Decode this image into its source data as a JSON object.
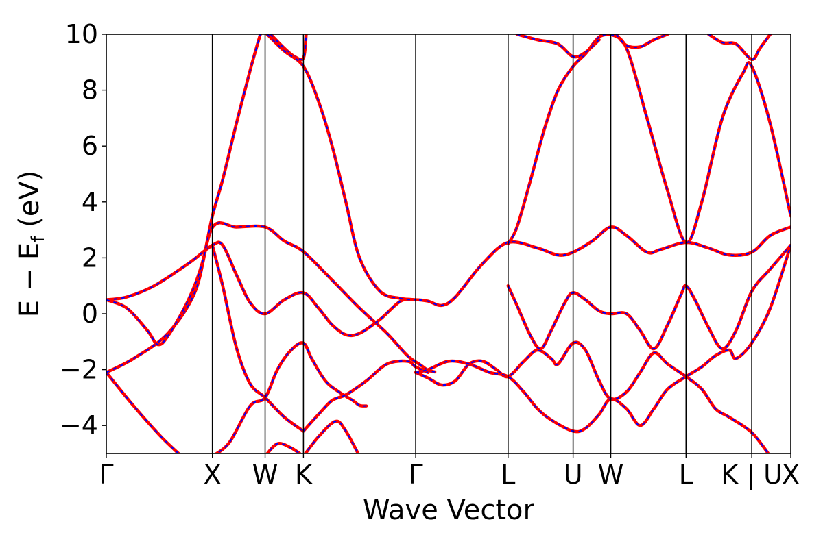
{
  "chart_data": {
    "type": "line",
    "title": "",
    "xlabel": "Wave Vector",
    "ylabel": "E − E",
    "ylabel_sub": "f",
    "ylabel_suffix": " (eV)",
    "xlim": [
      0,
      1
    ],
    "ylim": [
      -5,
      10
    ],
    "yticks": [
      -4,
      -2,
      0,
      2,
      4,
      6,
      8,
      10
    ],
    "ytick_labels": [
      "−4",
      "−2",
      "0",
      "2",
      "4",
      "6",
      "8",
      "10"
    ],
    "kpoints": [
      {
        "label": "Γ",
        "x": 0.0
      },
      {
        "label": "X",
        "x": 0.155
      },
      {
        "label": "W",
        "x": 0.232
      },
      {
        "label": "K",
        "x": 0.288
      },
      {
        "label": "Γ",
        "x": 0.452
      },
      {
        "label": "L",
        "x": 0.587
      },
      {
        "label": "U",
        "x": 0.682
      },
      {
        "label": "W",
        "x": 0.737
      },
      {
        "label": "L",
        "x": 0.847
      },
      {
        "label": "K | U",
        "x": 0.943
      },
      {
        "label": "X",
        "x": 1.0
      }
    ],
    "grid": false,
    "series": [
      {
        "color": "#ff0000",
        "overlay_color": "#0000ff",
        "points": [
          [
            0,
            -2.1
          ],
          [
            0.04,
            -3.3
          ],
          [
            0.08,
            -4.4
          ],
          [
            0.11,
            -5.1
          ]
        ]
      },
      {
        "color": "#ff0000",
        "overlay_color": "#0000ff",
        "points": [
          [
            0,
            -2.1
          ],
          [
            0.04,
            -1.6
          ],
          [
            0.09,
            -0.7
          ],
          [
            0.13,
            0.8
          ],
          [
            0.155,
            3.08
          ],
          [
            0.19,
            3.1
          ],
          [
            0.232,
            3.1
          ],
          [
            0.26,
            2.6
          ],
          [
            0.288,
            2.22
          ],
          [
            0.33,
            1.2
          ],
          [
            0.37,
            0.2
          ],
          [
            0.41,
            -0.7
          ],
          [
            0.44,
            -1.5
          ],
          [
            0.46,
            -1.85
          ],
          [
            0.47,
            -2.02
          ],
          [
            0.48,
            -2.08
          ]
        ]
      },
      {
        "color": "#ff0000",
        "overlay_color": "#0000ff",
        "points": [
          [
            0,
            0.5
          ],
          [
            0.03,
            0.6
          ],
          [
            0.07,
            1.0
          ],
          [
            0.12,
            1.8
          ],
          [
            0.155,
            2.45
          ],
          [
            0.17,
            2.45
          ],
          [
            0.19,
            1.4
          ],
          [
            0.21,
            0.4
          ],
          [
            0.232,
            0.0
          ],
          [
            0.26,
            0.5
          ],
          [
            0.288,
            0.75
          ],
          [
            0.31,
            0.2
          ],
          [
            0.33,
            -0.4
          ],
          [
            0.35,
            -0.75
          ],
          [
            0.37,
            -0.7
          ],
          [
            0.4,
            -0.2
          ],
          [
            0.43,
            0.45
          ],
          [
            0.452,
            0.5
          ],
          [
            0.47,
            0.45
          ],
          [
            0.49,
            0.3
          ],
          [
            0.51,
            0.6
          ],
          [
            0.55,
            1.8
          ],
          [
            0.587,
            2.55
          ],
          [
            0.63,
            2.35
          ],
          [
            0.66,
            2.1
          ],
          [
            0.682,
            2.2
          ],
          [
            0.71,
            2.6
          ],
          [
            0.737,
            3.1
          ],
          [
            0.76,
            2.8
          ],
          [
            0.79,
            2.2
          ],
          [
            0.81,
            2.3
          ],
          [
            0.847,
            2.55
          ],
          [
            0.88,
            2.35
          ],
          [
            0.91,
            2.1
          ],
          [
            0.943,
            2.2
          ],
          [
            0.97,
            2.8
          ],
          [
            1.0,
            3.1
          ]
        ]
      },
      {
        "color": "#ff0000",
        "overlay_color": "#0000ff",
        "points": [
          [
            0,
            0.5
          ],
          [
            0.03,
            0.2
          ],
          [
            0.06,
            -0.6
          ],
          [
            0.075,
            -1.1
          ],
          [
            0.09,
            -0.8
          ],
          [
            0.12,
            0.5
          ],
          [
            0.14,
            1.8
          ],
          [
            0.155,
            3.5
          ],
          [
            0.17,
            4.8
          ],
          [
            0.19,
            6.8
          ],
          [
            0.21,
            8.7
          ],
          [
            0.225,
            10.0
          ]
        ]
      },
      {
        "color": "#ff0000",
        "overlay_color": "#0000ff",
        "points": [
          [
            0.155,
            2.45
          ],
          [
            0.17,
            1.0
          ],
          [
            0.19,
            -1.2
          ],
          [
            0.21,
            -2.5
          ],
          [
            0.232,
            -3.0
          ],
          [
            0.26,
            -3.7
          ],
          [
            0.288,
            -4.2
          ]
        ]
      },
      {
        "color": "#ff0000",
        "overlay_color": "#0000ff",
        "points": [
          [
            0.155,
            -5.1
          ],
          [
            0.18,
            -4.6
          ],
          [
            0.21,
            -3.3
          ],
          [
            0.232,
            -3.0
          ],
          [
            0.25,
            -2.0
          ],
          [
            0.27,
            -1.3
          ],
          [
            0.288,
            -1.05
          ],
          [
            0.3,
            -1.6
          ],
          [
            0.32,
            -2.4
          ],
          [
            0.34,
            -2.8
          ],
          [
            0.36,
            -3.1
          ],
          [
            0.37,
            -3.28
          ],
          [
            0.38,
            -3.3
          ]
        ]
      },
      {
        "color": "#ff0000",
        "overlay_color": "#0000ff",
        "points": [
          [
            0.288,
            -4.2
          ],
          [
            0.31,
            -3.6
          ],
          [
            0.33,
            -3.1
          ],
          [
            0.35,
            -2.9
          ],
          [
            0.38,
            -2.4
          ],
          [
            0.41,
            -1.8
          ],
          [
            0.44,
            -1.7
          ],
          [
            0.452,
            -1.9
          ],
          [
            0.47,
            -2.1
          ]
        ]
      },
      {
        "color": "#ff0000",
        "overlay_color": "#0000ff",
        "points": [
          [
            0.288,
            -5.1
          ],
          [
            0.31,
            -4.4
          ],
          [
            0.335,
            -3.85
          ],
          [
            0.35,
            -4.2
          ],
          [
            0.37,
            -5.1
          ]
        ]
      },
      {
        "color": "#ff0000",
        "overlay_color": "#0000ff",
        "points": [
          [
            0.232,
            -5.1
          ],
          [
            0.25,
            -4.65
          ],
          [
            0.27,
            -4.8
          ],
          [
            0.288,
            -5.1
          ]
        ]
      },
      {
        "color": "#ff0000",
        "overlay_color": "#0000ff",
        "points": [
          [
            0.452,
            -2.1
          ],
          [
            0.47,
            -2.3
          ],
          [
            0.49,
            -2.55
          ],
          [
            0.51,
            -2.4
          ],
          [
            0.53,
            -1.8
          ],
          [
            0.55,
            -1.7
          ],
          [
            0.57,
            -2.0
          ],
          [
            0.587,
            -2.25
          ],
          [
            0.61,
            -1.7
          ],
          [
            0.63,
            -1.3
          ],
          [
            0.65,
            -1.6
          ],
          [
            0.66,
            -1.8
          ],
          [
            0.682,
            -1.05
          ],
          [
            0.7,
            -1.3
          ],
          [
            0.72,
            -2.4
          ],
          [
            0.737,
            -3.05
          ],
          [
            0.76,
            -2.8
          ],
          [
            0.78,
            -2.1
          ],
          [
            0.8,
            -1.4
          ],
          [
            0.82,
            -1.8
          ],
          [
            0.847,
            -2.25
          ],
          [
            0.87,
            -2.7
          ],
          [
            0.89,
            -3.4
          ],
          [
            0.91,
            -3.7
          ],
          [
            0.943,
            -4.25
          ],
          [
            0.97,
            -5.1
          ]
        ]
      },
      {
        "color": "#ff0000",
        "overlay_color": "#0000ff",
        "points": [
          [
            0.452,
            -2.1
          ],
          [
            0.47,
            -2.0
          ],
          [
            0.5,
            -1.7
          ],
          [
            0.53,
            -1.8
          ],
          [
            0.56,
            -2.1
          ],
          [
            0.587,
            -2.25
          ],
          [
            0.61,
            -2.8
          ],
          [
            0.63,
            -3.4
          ],
          [
            0.65,
            -3.8
          ],
          [
            0.682,
            -4.2
          ],
          [
            0.7,
            -4.1
          ],
          [
            0.72,
            -3.6
          ],
          [
            0.737,
            -3.05
          ],
          [
            0.76,
            -3.4
          ],
          [
            0.78,
            -4.0
          ],
          [
            0.8,
            -3.4
          ],
          [
            0.82,
            -2.7
          ],
          [
            0.847,
            -2.25
          ],
          [
            0.87,
            -1.9
          ],
          [
            0.89,
            -1.5
          ],
          [
            0.91,
            -1.3
          ],
          [
            0.92,
            -1.6
          ],
          [
            0.943,
            -1.05
          ],
          [
            0.97,
            0.2
          ],
          [
            1.0,
            2.45
          ]
        ]
      },
      {
        "color": "#ff0000",
        "overlay_color": "#0000ff",
        "points": [
          [
            0.587,
            1.0
          ],
          [
            0.6,
            0.3
          ],
          [
            0.62,
            -0.8
          ],
          [
            0.635,
            -1.25
          ],
          [
            0.65,
            -0.6
          ],
          [
            0.67,
            0.4
          ],
          [
            0.682,
            0.75
          ],
          [
            0.7,
            0.5
          ],
          [
            0.72,
            0.1
          ],
          [
            0.737,
            0.0
          ],
          [
            0.76,
            0.0
          ],
          [
            0.78,
            -0.6
          ],
          [
            0.8,
            -1.25
          ],
          [
            0.82,
            -0.4
          ],
          [
            0.84,
            0.7
          ],
          [
            0.847,
            1.0
          ],
          [
            0.86,
            0.5
          ],
          [
            0.88,
            -0.5
          ],
          [
            0.9,
            -1.25
          ],
          [
            0.92,
            -0.6
          ],
          [
            0.943,
            0.8
          ],
          [
            0.97,
            1.6
          ],
          [
            1.0,
            2.45
          ]
        ]
      },
      {
        "color": "#ff0000",
        "overlay_color": "#0000ff",
        "points": [
          [
            0.587,
            2.5
          ],
          [
            0.6,
            3.1
          ],
          [
            0.62,
            4.8
          ],
          [
            0.64,
            6.6
          ],
          [
            0.66,
            8.0
          ],
          [
            0.682,
            8.85
          ],
          [
            0.7,
            9.3
          ],
          [
            0.72,
            9.9
          ],
          [
            0.737,
            10.0
          ]
        ]
      },
      {
        "color": "#ff0000",
        "overlay_color": "#0000ff",
        "points": [
          [
            0.737,
            10.0
          ],
          [
            0.76,
            9.5
          ],
          [
            0.79,
            7.0
          ],
          [
            0.82,
            4.4
          ],
          [
            0.847,
            2.55
          ],
          [
            0.87,
            4.0
          ],
          [
            0.9,
            7.0
          ],
          [
            0.93,
            8.6
          ],
          [
            0.943,
            8.85
          ],
          [
            0.97,
            6.8
          ],
          [
            1.0,
            3.5
          ]
        ]
      },
      {
        "color": "#ff0000",
        "overlay_color": "#0000ff",
        "points": [
          [
            0.6,
            10.0
          ],
          [
            0.63,
            9.8
          ],
          [
            0.66,
            9.65
          ],
          [
            0.682,
            9.2
          ],
          [
            0.7,
            9.35
          ],
          [
            0.72,
            9.8
          ]
        ]
      },
      {
        "color": "#ff0000",
        "overlay_color": "#0000ff",
        "points": [
          [
            0.745,
            10.0
          ],
          [
            0.76,
            9.6
          ],
          [
            0.78,
            9.55
          ],
          [
            0.8,
            9.8
          ],
          [
            0.82,
            10.0
          ]
        ]
      },
      {
        "color": "#ff0000",
        "overlay_color": "#0000ff",
        "points": [
          [
            0.88,
            10.0
          ],
          [
            0.9,
            9.7
          ],
          [
            0.92,
            9.65
          ],
          [
            0.943,
            9.1
          ],
          [
            0.955,
            9.5
          ],
          [
            0.97,
            10.0
          ]
        ]
      },
      {
        "color": "#ff0000",
        "overlay_color": "#0000ff",
        "points": [
          [
            0.24,
            10.0
          ],
          [
            0.26,
            9.5
          ],
          [
            0.275,
            9.2
          ],
          [
            0.288,
            9.15
          ],
          [
            0.292,
            10.0
          ]
        ]
      },
      {
        "color": "#ff0000",
        "overlay_color": "#0000ff",
        "points": [
          [
            0.235,
            10.0
          ],
          [
            0.26,
            9.4
          ],
          [
            0.288,
            8.85
          ],
          [
            0.31,
            7.6
          ],
          [
            0.33,
            6.0
          ],
          [
            0.35,
            4.0
          ],
          [
            0.37,
            2.0
          ],
          [
            0.4,
            0.8
          ],
          [
            0.43,
            0.55
          ],
          [
            0.452,
            0.5
          ]
        ]
      }
    ]
  }
}
